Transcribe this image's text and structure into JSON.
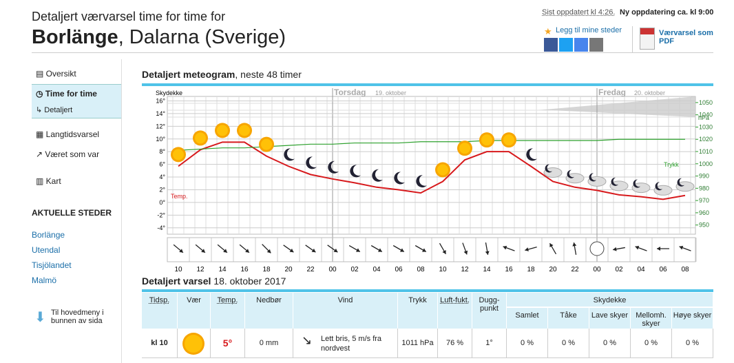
{
  "header": {
    "subtitle": "Detaljert værvarsel time for time for",
    "place": "Borlänge",
    "region": ", Dalarna (Sverige)",
    "updated": "Sist oppdatert kl 4:26.",
    "next_update": "Ny oppdatering ca. kl 9:00",
    "add_place": "Legg til mine steder",
    "pdf": "Værvarsel som PDF"
  },
  "sidebar": {
    "menu": [
      "Oversikt",
      "Time for time",
      "Detaljert",
      "Langtidsvarsel",
      "Været som var",
      "Kart"
    ],
    "places_title": "AKTUELLE STEDER",
    "places": [
      "Borlänge",
      "Utendal",
      "Tisjölandet",
      "Malmö"
    ],
    "bottom": "Til hovedmeny i bunnen av sida"
  },
  "meteogram_title": "Detaljert meteogram",
  "meteogram_subtitle": ", neste 48 timer",
  "chart_data": {
    "type": "line",
    "sky_label": "Skydekke",
    "days": [
      {
        "name": "Torsdag",
        "date": "19. oktober"
      },
      {
        "name": "Fredag",
        "date": "20. oktober"
      }
    ],
    "categories": [
      "10",
      "12",
      "14",
      "16",
      "18",
      "20",
      "22",
      "00",
      "02",
      "04",
      "06",
      "08",
      "10",
      "12",
      "14",
      "16",
      "18",
      "20",
      "22",
      "00",
      "02",
      "04",
      "06",
      "08"
    ],
    "series": [
      {
        "name": "Temp.",
        "color": "#d7191c",
        "values": [
          5.7,
          8.3,
          9.5,
          9.5,
          7.3,
          5.7,
          4.4,
          3.7,
          3.1,
          2.4,
          2,
          1.5,
          3.3,
          6.7,
          8,
          8,
          5.7,
          3.3,
          2.4,
          1.9,
          1.2,
          0.9,
          0.5,
          1.1
        ]
      },
      {
        "name": "Trykk",
        "color": "#2ca02c",
        "axis": "y2",
        "values": [
          1011,
          1012,
          1013,
          1013,
          1014,
          1015,
          1016,
          1016,
          1017,
          1017,
          1017,
          1018,
          1018,
          1018,
          1019,
          1019,
          1019,
          1019,
          1019,
          1019,
          1020,
          1020,
          1020,
          1020
        ]
      }
    ],
    "ylim": [
      -5,
      16.7
    ],
    "yticks": [
      {
        "value": 16,
        "label": "16°"
      },
      {
        "value": 14,
        "label": "14°"
      },
      {
        "value": 12,
        "label": "12°"
      },
      {
        "value": 10,
        "label": "10°"
      },
      {
        "value": 8,
        "label": "8°"
      },
      {
        "value": 6,
        "label": "6°"
      },
      {
        "value": 4,
        "label": "4°"
      },
      {
        "value": 2,
        "label": "2°"
      },
      {
        "value": 0,
        "label": "0°"
      },
      {
        "value": -2,
        "label": "-2°"
      },
      {
        "value": -4,
        "label": "-4°"
      }
    ],
    "y2_unit": "hPa",
    "y2lim": [
      942.5,
      1055
    ],
    "y2ticks": [
      1050,
      1040,
      1030,
      1020,
      1010,
      1000,
      990,
      980,
      970,
      960,
      950
    ],
    "grid": true
  },
  "forecast_title": "Detaljert varsel",
  "forecast_date": "18. oktober 2017",
  "table": {
    "headers": [
      "Tidsp.",
      "Vær",
      "Temp.",
      "Nedbør",
      "Vind",
      "Trykk",
      "Luft-fukt.",
      "Dugg-punkt",
      "Skydekke"
    ],
    "sub_headers": [
      "Samlet",
      "Tåke",
      "Lave skyer",
      "Mellomh. skyer",
      "Høye skyer"
    ],
    "rows": [
      [
        "kl 10",
        "",
        "5°",
        "0 mm",
        "Lett bris, 5 m/s fra nordvest",
        "1011 hPa",
        "76 %",
        "1°",
        "0 %",
        "0 %",
        "0 %",
        "0 %",
        "0 %"
      ]
    ]
  }
}
